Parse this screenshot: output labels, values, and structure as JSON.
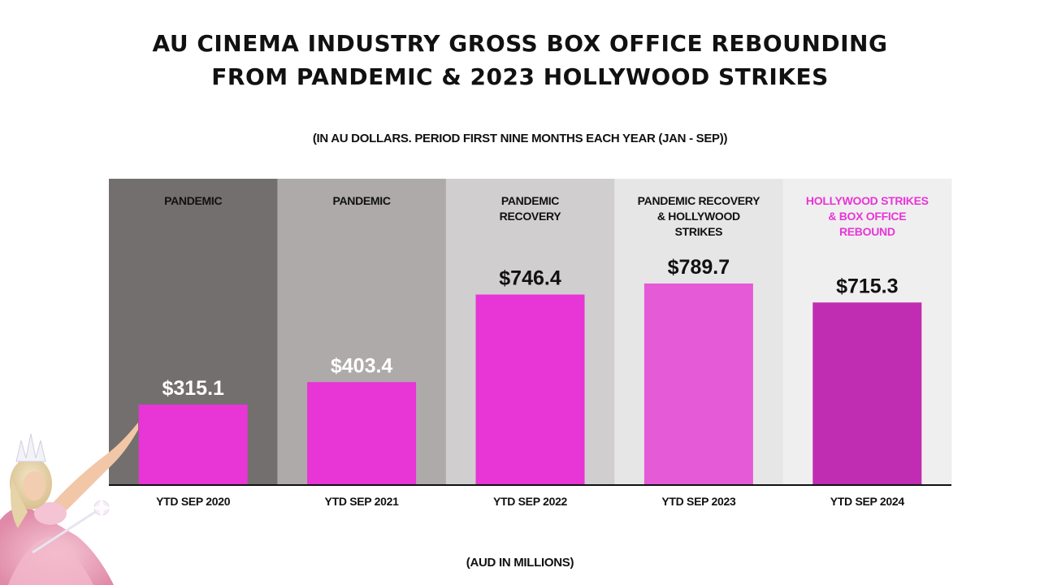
{
  "title_lines": [
    "AU CINEMA INDUSTRY GROSS BOX OFFICE REBOUNDING",
    "FROM PANDEMIC & 2023 HOLLYWOOD STRIKES"
  ],
  "subtitle": "(IN AU DOLLARS. PERIOD FIRST NINE MONTHS EACH YEAR (JAN - SEP))",
  "unit_label": "(AUD IN MILLIONS)",
  "chart_data": {
    "type": "bar",
    "categories": [
      "YTD SEP 2020",
      "YTD SEP 2021",
      "YTD SEP 2022",
      "YTD SEP 2023",
      "YTD SEP 2024"
    ],
    "values": [
      315.1,
      403.4,
      746.4,
      789.7,
      715.3
    ],
    "value_labels": [
      "$315.1",
      "$403.4",
      "$746.4",
      "$789.7",
      "$715.3"
    ],
    "annotations": [
      [
        "PANDEMIC"
      ],
      [
        "PANDEMIC"
      ],
      [
        "PANDEMIC",
        "RECOVERY"
      ],
      [
        "PANDEMIC RECOVERY",
        "& HOLLYWOOD",
        "STRIKES"
      ],
      [
        "HOLLYWOOD STRIKES",
        "& BOX OFFICE",
        "REBOUND"
      ]
    ],
    "ylim": [
      0,
      1200
    ],
    "colors": {
      "panel_backgrounds": [
        "#736f6e",
        "#aeaaaa",
        "#d0cece",
        "#e7e6e6",
        "#f0eff0"
      ],
      "bars": [
        "#e835d6",
        "#e835d6",
        "#e835d6",
        "#e55ad6",
        "#c02db2"
      ],
      "value_label_colors": [
        "#ffffff",
        "#ffffff",
        "#111111",
        "#111111",
        "#111111"
      ],
      "annotation_colors": [
        "#111111",
        "#111111",
        "#111111",
        "#111111",
        "#e835d6"
      ],
      "axis": "#111111"
    }
  }
}
